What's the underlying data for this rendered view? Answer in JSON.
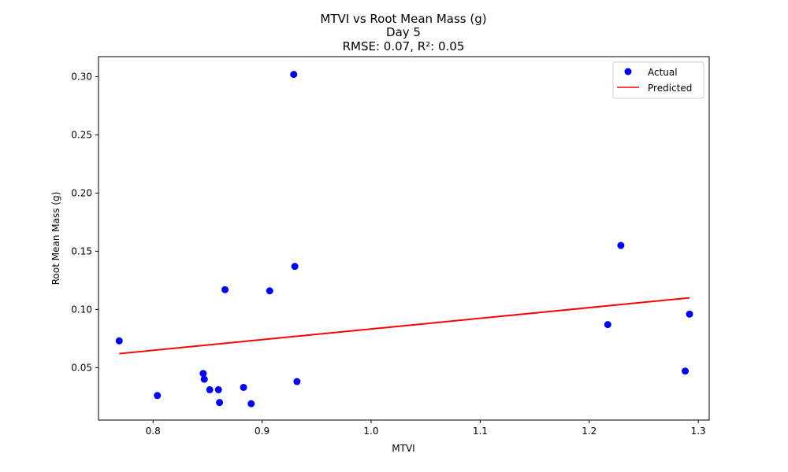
{
  "chart_data": {
    "type": "scatter",
    "title_lines": [
      "MTVI vs Root Mean Mass (g)",
      "Day 5",
      "RMSE: 0.07, R²: 0.05"
    ],
    "xlabel": "MTVI",
    "ylabel": "Root Mean Mass (g)",
    "xlim": [
      0.75,
      1.31
    ],
    "ylim": [
      0.0049,
      0.3173
    ],
    "xticks": [
      0.8,
      0.9,
      1.0,
      1.1,
      1.2,
      1.3
    ],
    "xtick_labels": [
      "0.8",
      "0.9",
      "1.0",
      "1.1",
      "1.2",
      "1.3"
    ],
    "yticks": [
      0.05,
      0.1,
      0.15,
      0.2,
      0.25,
      0.3
    ],
    "ytick_labels": [
      "0.05",
      "0.10",
      "0.15",
      "0.20",
      "0.25",
      "0.30"
    ],
    "grid": false,
    "legend_position": "top-right",
    "series": [
      {
        "name": "Actual",
        "kind": "scatter",
        "color": "#0000ff",
        "points": [
          [
            0.769,
            0.073
          ],
          [
            0.804,
            0.026
          ],
          [
            0.846,
            0.045
          ],
          [
            0.847,
            0.04
          ],
          [
            0.852,
            0.031
          ],
          [
            0.86,
            0.031
          ],
          [
            0.861,
            0.02
          ],
          [
            0.866,
            0.117
          ],
          [
            0.883,
            0.033
          ],
          [
            0.89,
            0.019
          ],
          [
            0.907,
            0.116
          ],
          [
            0.929,
            0.302
          ],
          [
            0.93,
            0.137
          ],
          [
            0.932,
            0.038
          ],
          [
            1.217,
            0.087
          ],
          [
            1.229,
            0.155
          ],
          [
            1.288,
            0.047
          ],
          [
            1.292,
            0.096
          ]
        ]
      },
      {
        "name": "Predicted",
        "kind": "line",
        "color": "#ff0000",
        "points": [
          [
            0.769,
            0.062
          ],
          [
            1.292,
            0.11
          ]
        ]
      }
    ]
  }
}
